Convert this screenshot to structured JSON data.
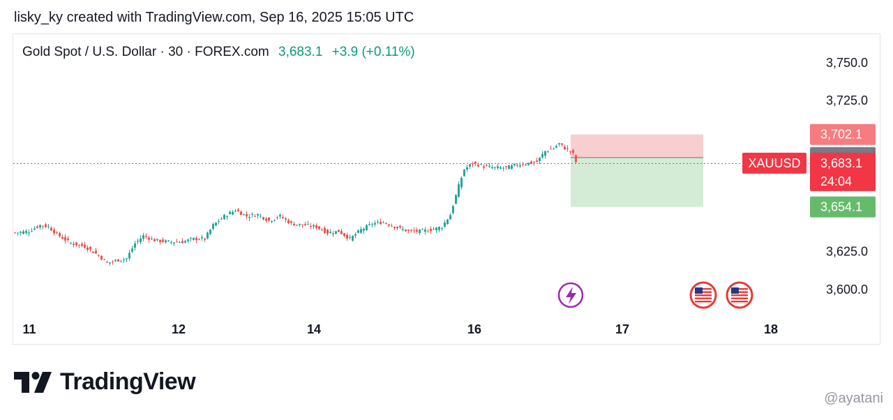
{
  "caption": "lisky_ky created with TradingView.com, Sep 16, 2025 15:05 UTC",
  "legend": {
    "symbol": "Gold Spot / U.S. Dollar · 30 · FOREX.com",
    "price": "3,683.1",
    "change": "+3.9 (+0.11%)"
  },
  "brand": "TradingView",
  "watermark": "@ayatani",
  "colors": {
    "up": "#26a69a",
    "down": "#ef5350",
    "last_price": "#f23645",
    "stop_zone": "#f8c9cb",
    "target_zone": "#cfead2",
    "stop_tag": "#f77c80",
    "entry_tag": "#787b86",
    "target_tag": "#66bb6a",
    "event_lightning": "#9c27b0"
  },
  "chart_data": {
    "type": "candlestick",
    "interval": "30",
    "ylim": [
      3590,
      3762
    ],
    "y_ticks": [
      "3,750.0",
      "3,725.0",
      "3,625.0",
      "3,600.0"
    ],
    "x_ticks": [
      "11",
      "12",
      "14",
      "16",
      "17",
      "18"
    ],
    "last_price": {
      "label": "XAUUSD",
      "value": "3,683.1",
      "countdown": "24:04"
    },
    "position": {
      "stop": "3,702.1",
      "entry": "3,686.8",
      "target": "3,654.1"
    },
    "events": [
      {
        "type": "lightning"
      },
      {
        "type": "us-flag"
      },
      {
        "type": "us-flag"
      }
    ],
    "close_path": [
      [
        0,
        3637
      ],
      [
        5,
        3638
      ],
      [
        9,
        3642
      ],
      [
        12,
        3641
      ],
      [
        15,
        3636
      ],
      [
        20,
        3630
      ],
      [
        25,
        3628
      ],
      [
        30,
        3622
      ],
      [
        33,
        3617
      ],
      [
        37,
        3619
      ],
      [
        40,
        3620
      ],
      [
        43,
        3630
      ],
      [
        46,
        3635
      ],
      [
        50,
        3632
      ],
      [
        55,
        3631
      ],
      [
        60,
        3631
      ],
      [
        64,
        3633
      ],
      [
        68,
        3633
      ],
      [
        71,
        3642
      ],
      [
        75,
        3648
      ],
      [
        79,
        3652
      ],
      [
        83,
        3648
      ],
      [
        87,
        3649
      ],
      [
        91,
        3645
      ],
      [
        95,
        3648
      ],
      [
        99,
        3643
      ],
      [
        104,
        3642
      ],
      [
        108,
        3641
      ],
      [
        112,
        3637
      ],
      [
        116,
        3638
      ],
      [
        120,
        3633
      ],
      [
        124,
        3639
      ],
      [
        128,
        3643
      ],
      [
        132,
        3644
      ],
      [
        136,
        3641
      ],
      [
        141,
        3638
      ],
      [
        145,
        3638
      ],
      [
        149,
        3639
      ],
      [
        153,
        3641
      ],
      [
        156,
        3649
      ],
      [
        159,
        3668
      ],
      [
        161,
        3679
      ],
      [
        164,
        3683
      ],
      [
        168,
        3681
      ],
      [
        172,
        3680
      ],
      [
        176,
        3680
      ],
      [
        180,
        3682
      ],
      [
        184,
        3683
      ],
      [
        187,
        3684
      ],
      [
        190,
        3691
      ],
      [
        193,
        3693
      ],
      [
        195,
        3696
      ],
      [
        197,
        3693
      ],
      [
        199,
        3691
      ],
      [
        200,
        3689
      ],
      [
        201,
        3684
      ]
    ]
  }
}
